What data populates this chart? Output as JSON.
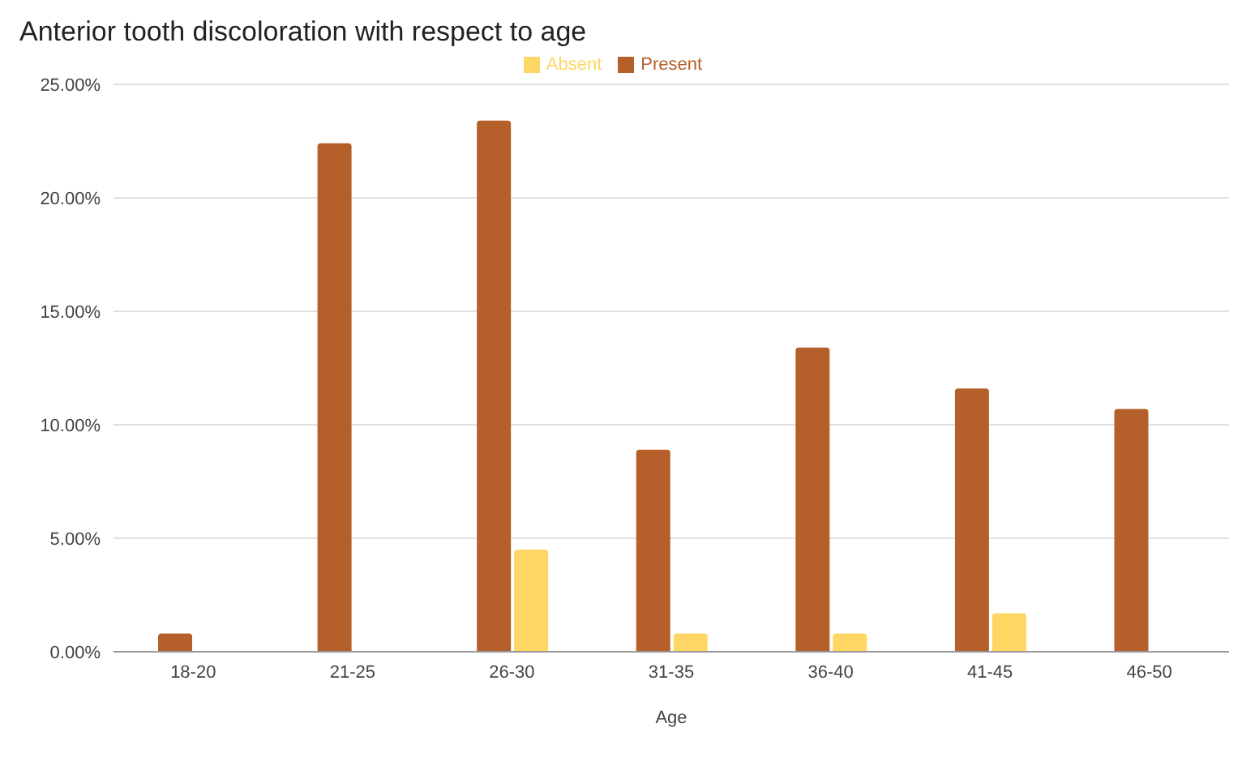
{
  "chart_data": {
    "type": "bar",
    "title": "Anterior tooth discoloration with respect to age",
    "xlabel": "Age",
    "categories": [
      "18-20",
      "21-25",
      "26-30",
      "31-35",
      "36-40",
      "41-45",
      "46-50"
    ],
    "series": [
      {
        "name": "Present",
        "color": "#b5602a",
        "values": [
          0.8,
          22.4,
          23.4,
          8.9,
          13.4,
          11.6,
          10.7
        ]
      },
      {
        "name": "Absent",
        "color": "#fdd663",
        "values": [
          0,
          0,
          4.5,
          0.8,
          0.8,
          1.7,
          0
        ]
      }
    ],
    "ylim": [
      0,
      25
    ],
    "yticks": [
      {
        "value": 0,
        "label": "0.00%"
      },
      {
        "value": 5,
        "label": "5.00%"
      },
      {
        "value": 10,
        "label": "10.00%"
      },
      {
        "value": 15,
        "label": "15.00%"
      },
      {
        "value": 20,
        "label": "20.00%"
      },
      {
        "value": 25,
        "label": "25.00%"
      }
    ],
    "grid": "y",
    "legend": "top"
  }
}
